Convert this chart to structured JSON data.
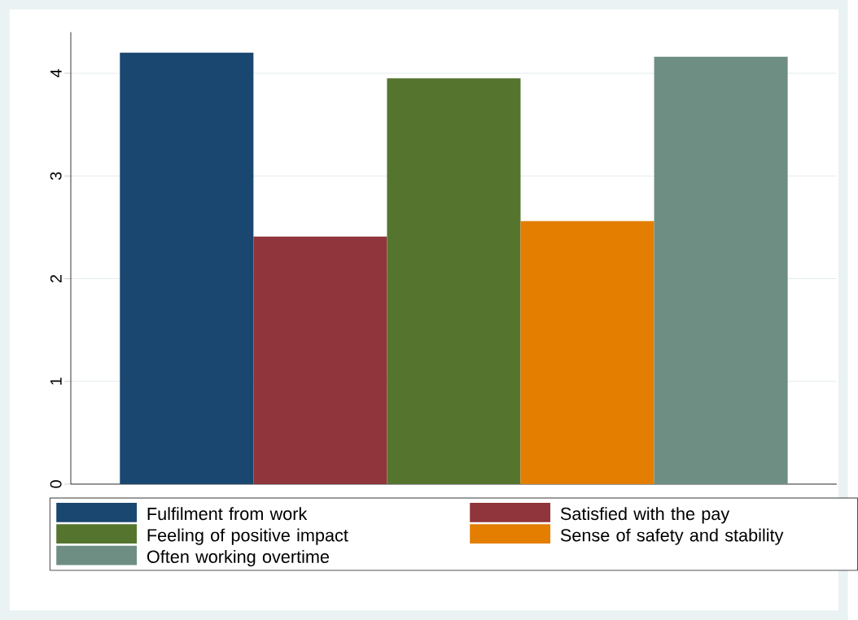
{
  "chart_data": {
    "type": "bar",
    "categories": [
      null
    ],
    "series": [
      {
        "name": "Fulfilment from work",
        "color": "#1a476f",
        "values": [
          4.2
        ]
      },
      {
        "name": "Satisfied with the pay",
        "color": "#90353b",
        "values": [
          2.41
        ]
      },
      {
        "name": "Feeling of positive impact",
        "color": "#55752f",
        "values": [
          3.95
        ]
      },
      {
        "name": "Sense of safety and stability",
        "color": "#e37e00",
        "values": [
          2.56
        ]
      },
      {
        "name": "Often working overtime",
        "color": "#6e8e84",
        "values": [
          4.16
        ]
      }
    ],
    "ylim": [
      0,
      4.4
    ],
    "yticks": [
      0,
      1,
      2,
      3,
      4
    ],
    "grid": "y",
    "legend": "bottom"
  }
}
